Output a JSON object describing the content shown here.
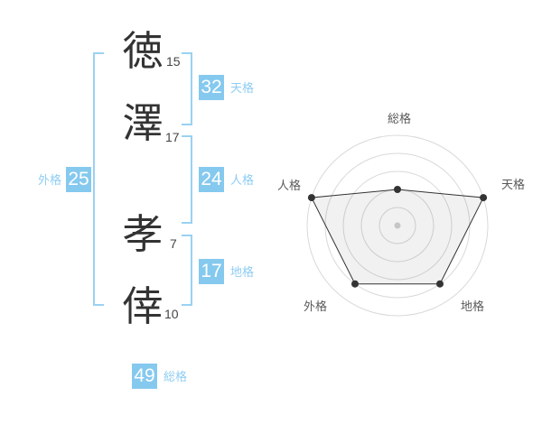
{
  "accent_colors": {
    "badge_bg": "#85C9EF",
    "label_blue": "#8FCDF2",
    "bracket_blue": "#9AD2F2"
  },
  "name_panel": {
    "chars": [
      {
        "char": "徳",
        "strokes": "15"
      },
      {
        "char": "澤",
        "strokes": "17"
      },
      {
        "char": "孝",
        "strokes": "7"
      },
      {
        "char": "倖",
        "strokes": "10"
      }
    ],
    "badges": {
      "tenkaku": {
        "value": "32",
        "label": "天格"
      },
      "jinkaku": {
        "value": "24",
        "label": "人格"
      },
      "chikaku": {
        "value": "17",
        "label": "地格"
      },
      "gaikaku": {
        "value": "25",
        "label": "外格"
      },
      "soukaku": {
        "value": "49",
        "label": "総格"
      }
    }
  },
  "chart_data": {
    "type": "radar",
    "axes": [
      "総格",
      "天格",
      "地格",
      "外格",
      "人格"
    ],
    "values": [
      2,
      5,
      4,
      4,
      5
    ],
    "max": 5,
    "rings": 5,
    "start": "top",
    "direction": "clockwise",
    "axis_scores": {
      "総格": 49,
      "天格": 32,
      "地格": 17,
      "外格": 25,
      "人格": 24
    },
    "styles": {
      "ring_color": "#d9d9d9",
      "line_color": "#333333",
      "dot_color": "#333333",
      "fill_color": "rgba(0,0,0,0.055)",
      "center_dot_color": "#c6c6c6",
      "label_color": "#5a5a5a"
    }
  }
}
